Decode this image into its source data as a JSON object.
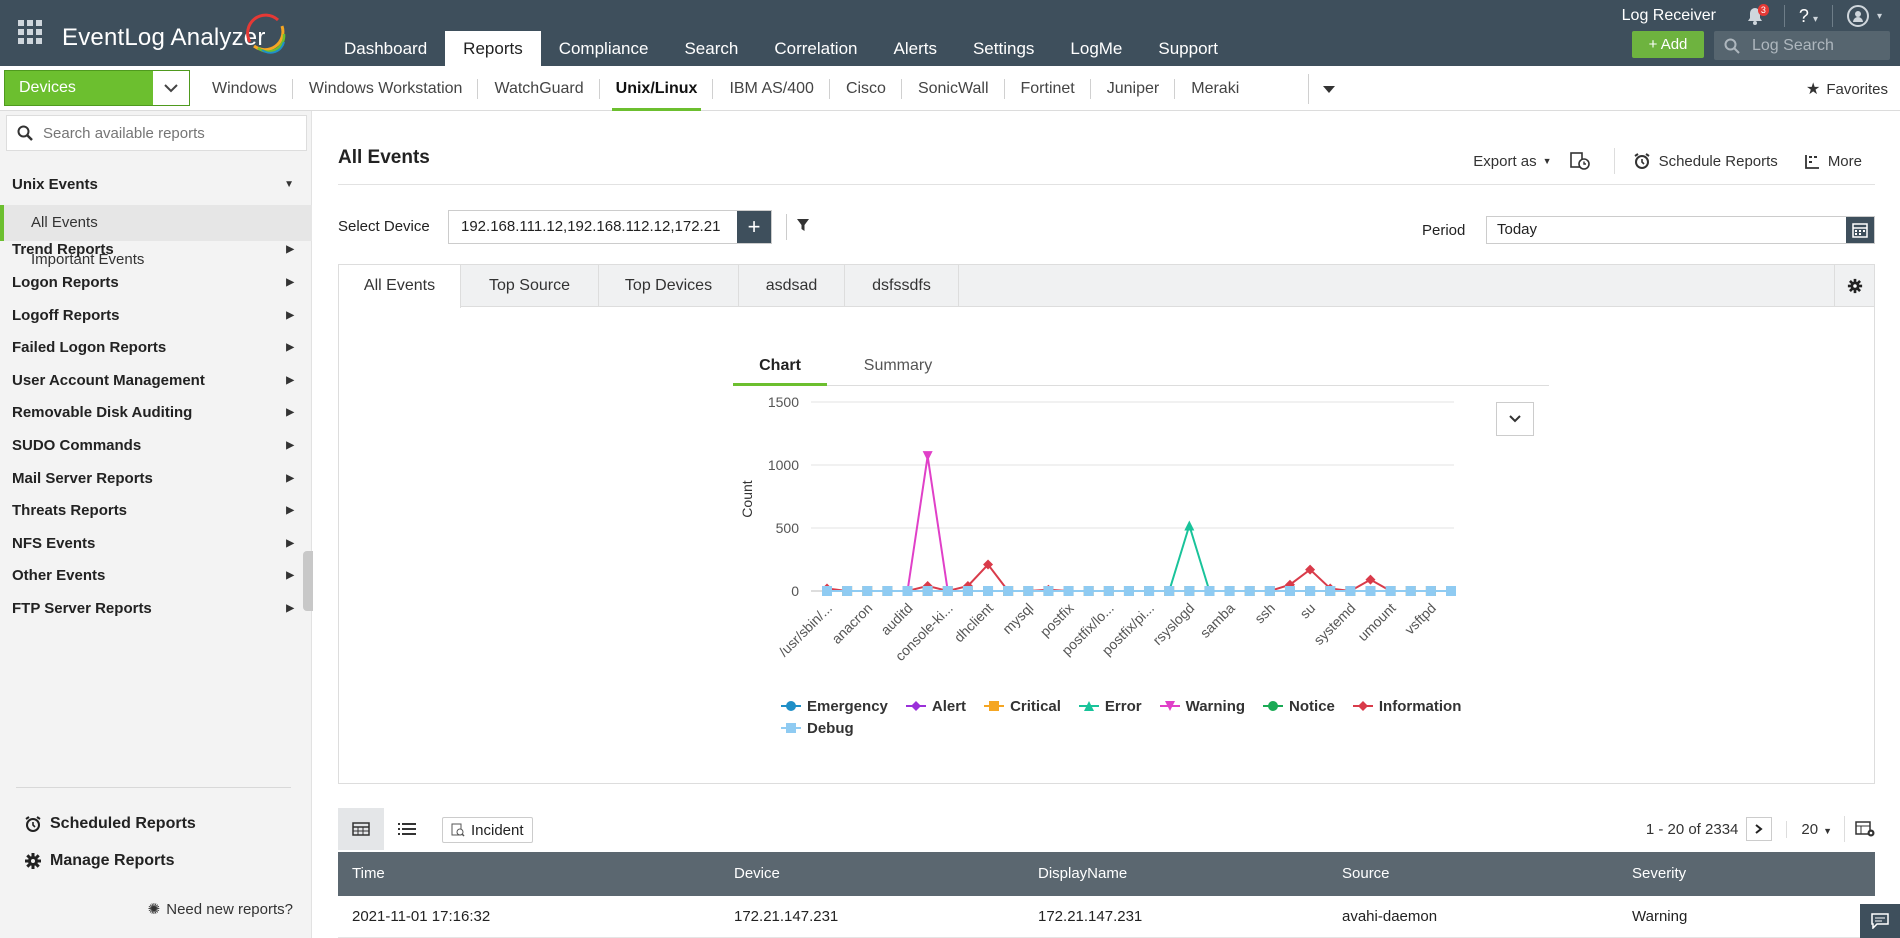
{
  "app": {
    "brand": "EventLog Analyzer",
    "main_nav": [
      "Dashboard",
      "Reports",
      "Compliance",
      "Search",
      "Correlation",
      "Alerts",
      "Settings",
      "LogMe",
      "Support"
    ],
    "active_nav": "Reports",
    "log_receiver": "Log Receiver",
    "notifications": "3",
    "help": "?",
    "add_label": "+ Add",
    "log_search_placeholder": "Log Search"
  },
  "subbar": {
    "device_type": "Devices",
    "device_tabs": [
      "Windows",
      "Windows Workstation",
      "WatchGuard",
      "Unix/Linux",
      "IBM AS/400",
      "Cisco",
      "SonicWall",
      "Fortinet",
      "Juniper",
      "Meraki"
    ],
    "active_tab": "Unix/Linux",
    "favorites": "Favorites"
  },
  "sidebar": {
    "search_placeholder": "Search available reports",
    "expanded_group": "Unix Events",
    "sub_items": [
      "All Events",
      "Important Events"
    ],
    "active_item": "All Events",
    "groups": [
      "Trend Reports",
      "Logon Reports",
      "Logoff Reports",
      "Failed Logon Reports",
      "User Account Management",
      "Removable Disk Auditing",
      "SUDO Commands",
      "Mail Server Reports",
      "Threats Reports",
      "NFS Events",
      "Other Events",
      "FTP Server Reports"
    ],
    "scheduled": "Scheduled Reports",
    "manage": "Manage Reports",
    "need_new": "Need new reports?"
  },
  "report": {
    "title": "All Events",
    "export_label": "Export as",
    "schedule_label": "Schedule Reports",
    "more_label": "More",
    "select_device_label": "Select Device",
    "selected_devices": "192.168.111.12,192.168.112.12,172.21",
    "period_label": "Period",
    "period_value": "Today",
    "tabs": [
      "All Events",
      "Top Source",
      "Top Devices",
      "asdsad",
      "dsfssdfs"
    ],
    "active_tab": "All Events",
    "view_tabs": [
      "Chart",
      "Summary"
    ],
    "active_view": "Chart"
  },
  "chart_data": {
    "type": "line",
    "ylabel": "Count",
    "ylim": [
      0,
      1500
    ],
    "yticks": [
      0,
      500,
      1000,
      1500
    ],
    "x_tick_labels": [
      "/usr/sbin/...",
      "anacron",
      "auditd",
      "console-ki...",
      "dhclient",
      "mysql",
      "postfix",
      "postfix/lo...",
      "postfix/pi...",
      "rsyslogd",
      "samba",
      "ssh",
      "su",
      "systemd",
      "umount",
      "vsftpd"
    ],
    "point_count": 32,
    "series": [
      {
        "name": "Emergency",
        "color": "#1f8fc7",
        "marker": "circle",
        "values": [
          0,
          0,
          0,
          0,
          0,
          0,
          0,
          0,
          0,
          0,
          0,
          0,
          0,
          0,
          0,
          0,
          0,
          0,
          0,
          0,
          0,
          0,
          0,
          0,
          0,
          0,
          0,
          0,
          0,
          0,
          0,
          0
        ]
      },
      {
        "name": "Alert",
        "color": "#9b30d9",
        "marker": "diamond",
        "values": [
          0,
          0,
          0,
          0,
          0,
          0,
          0,
          0,
          0,
          0,
          0,
          0,
          0,
          0,
          0,
          0,
          0,
          0,
          0,
          0,
          0,
          0,
          0,
          0,
          0,
          0,
          0,
          0,
          0,
          0,
          0,
          0
        ]
      },
      {
        "name": "Critical",
        "color": "#f5a623",
        "marker": "square",
        "values": [
          0,
          0,
          0,
          0,
          0,
          0,
          0,
          0,
          0,
          0,
          0,
          0,
          0,
          0,
          0,
          0,
          0,
          0,
          0,
          0,
          0,
          0,
          0,
          0,
          0,
          0,
          0,
          0,
          0,
          0,
          0,
          0
        ]
      },
      {
        "name": "Error",
        "color": "#19c39a",
        "marker": "triangle",
        "values": [
          0,
          0,
          0,
          0,
          0,
          0,
          0,
          0,
          0,
          0,
          0,
          0,
          0,
          0,
          0,
          0,
          0,
          0,
          520,
          0,
          0,
          0,
          0,
          0,
          0,
          0,
          0,
          0,
          0,
          0,
          0,
          0
        ]
      },
      {
        "name": "Warning",
        "color": "#e040c8",
        "marker": "triangle-down",
        "values": [
          0,
          0,
          0,
          0,
          0,
          1070,
          0,
          0,
          0,
          0,
          0,
          0,
          0,
          0,
          0,
          0,
          0,
          0,
          0,
          0,
          0,
          0,
          0,
          0,
          0,
          0,
          0,
          0,
          0,
          0,
          0,
          0
        ]
      },
      {
        "name": "Notice",
        "color": "#1aaa55",
        "marker": "circle",
        "values": [
          0,
          0,
          0,
          0,
          0,
          0,
          0,
          0,
          0,
          0,
          0,
          0,
          0,
          0,
          0,
          0,
          0,
          0,
          0,
          0,
          0,
          0,
          0,
          0,
          0,
          0,
          0,
          0,
          0,
          0,
          0,
          0
        ]
      },
      {
        "name": "Information",
        "color": "#d93b4a",
        "marker": "diamond",
        "values": [
          20,
          0,
          0,
          0,
          0,
          40,
          0,
          40,
          210,
          0,
          0,
          10,
          0,
          0,
          0,
          0,
          0,
          0,
          0,
          0,
          0,
          0,
          0,
          50,
          170,
          20,
          0,
          90,
          0,
          0,
          0,
          0
        ]
      },
      {
        "name": "Debug",
        "color": "#8fcbf2",
        "marker": "square",
        "values": [
          0,
          0,
          0,
          0,
          0,
          0,
          0,
          0,
          0,
          0,
          0,
          0,
          0,
          0,
          0,
          0,
          0,
          0,
          0,
          0,
          0,
          0,
          0,
          0,
          0,
          0,
          0,
          0,
          0,
          0,
          0,
          0
        ]
      }
    ]
  },
  "table": {
    "incident_label": "Incident",
    "pagination": "1 - 20 of 2334",
    "page_size": "20",
    "columns": [
      "Time",
      "Device",
      "DisplayName",
      "Source",
      "Severity"
    ],
    "rows": [
      [
        "2021-11-01 17:16:32",
        "172.21.147.231",
        "172.21.147.231",
        "avahi-daemon",
        "Warning"
      ]
    ]
  }
}
